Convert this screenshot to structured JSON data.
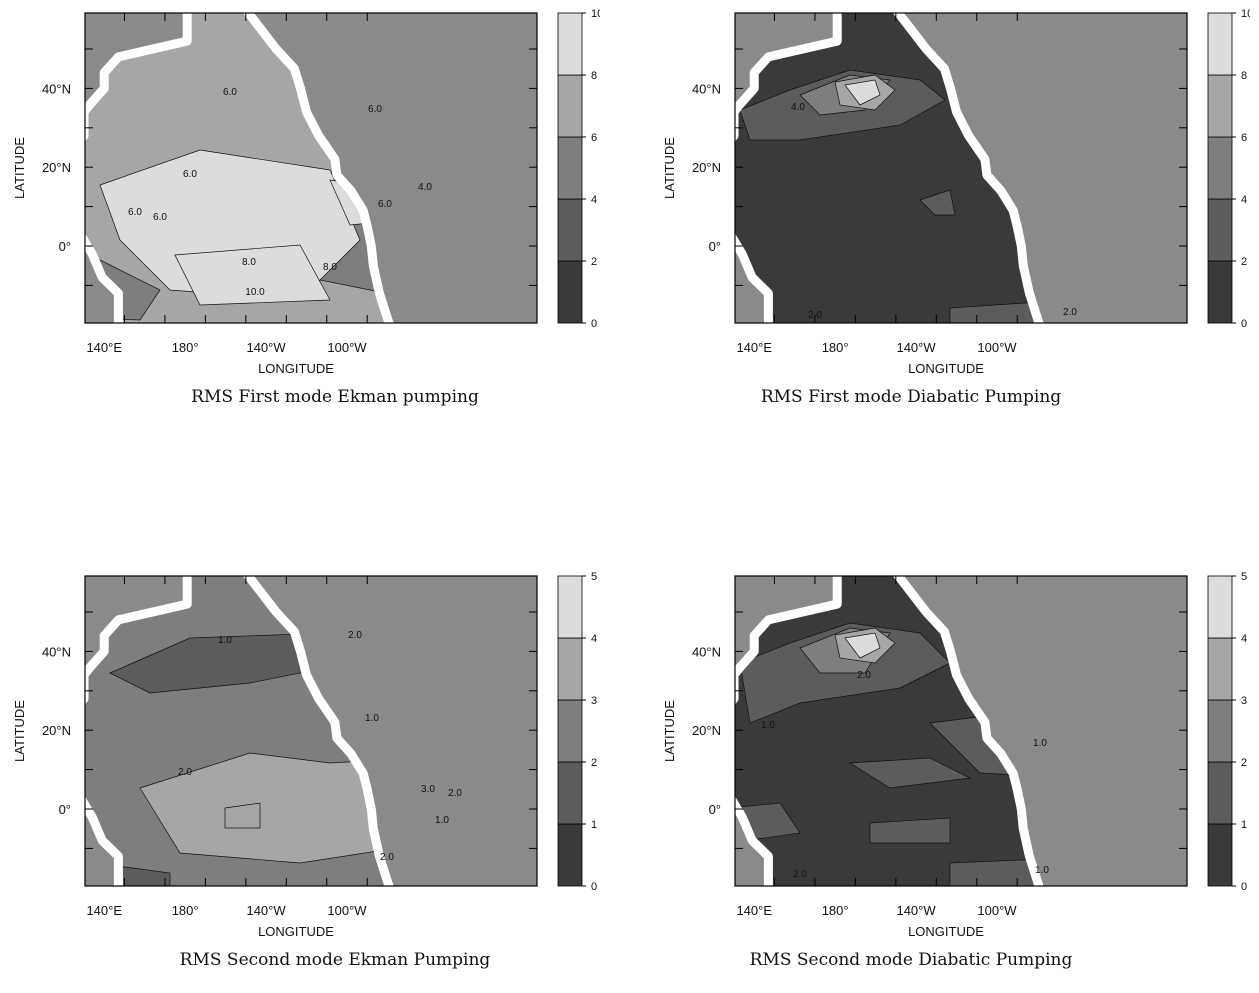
{
  "colors": {
    "land": "#8a8a8a",
    "coast": "#ffffff",
    "frame": "#000000",
    "levels": [
      "#3a3a3a",
      "#5c5c5c",
      "#7e7e7e",
      "#a6a6a6",
      "#dcdcdc"
    ]
  },
  "panels": [
    {
      "caption": "RMS First mode Ekman pumping",
      "xlabel": "LONGITUDE",
      "ylabel": "LATITUDE",
      "xticks": [
        "140°E",
        "180°",
        "140°W",
        "100°W"
      ],
      "yticks": [
        "40°N",
        "20°N",
        "0°"
      ],
      "colorbar": [
        "0",
        "2",
        "4",
        "6",
        "8",
        "10"
      ],
      "contour_labels": [
        "6.0",
        "6.0",
        "6.0",
        "6.0",
        "4.0",
        "6.0",
        "6.0",
        "8.0",
        "8.0",
        "10.0"
      ],
      "field": "ekman1"
    },
    {
      "caption": "RMS First mode Diabatic Pumping",
      "xlabel": "LONGITUDE",
      "ylabel": "LATITUDE",
      "xticks": [
        "140°E",
        "180°",
        "140°W",
        "100°W"
      ],
      "yticks": [
        "40°N",
        "20°N",
        "0°"
      ],
      "colorbar": [
        "0",
        "2",
        "4",
        "6",
        "8",
        "10"
      ],
      "contour_labels": [
        "4.0",
        "2.0",
        "2.0"
      ],
      "field": "diab1"
    },
    {
      "caption": "RMS Second mode Ekman Pumping",
      "xlabel": "LONGITUDE",
      "ylabel": "LATITUDE",
      "xticks": [
        "140°E",
        "180°",
        "140°W",
        "100°W"
      ],
      "yticks": [
        "40°N",
        "20°N",
        "0°"
      ],
      "colorbar": [
        "0",
        "1",
        "2",
        "3",
        "4",
        "5"
      ],
      "contour_labels": [
        "1.0",
        "2.0",
        "1.0",
        "2.0",
        "3.0",
        "2.0",
        "1.0",
        "2.0"
      ],
      "field": "ekman2"
    },
    {
      "caption": "RMS Second mode Diabatic Pumping",
      "xlabel": "LONGITUDE",
      "ylabel": "LATITUDE",
      "xticks": [
        "140°E",
        "180°",
        "140°W",
        "100°W"
      ],
      "yticks": [
        "40°N",
        "20°N",
        "0°"
      ],
      "colorbar": [
        "0",
        "1",
        "2",
        "3",
        "4",
        "5"
      ],
      "contour_labels": [
        "2.0",
        "1.0",
        "1.0",
        "2.0",
        "1.0"
      ],
      "field": "diab2"
    }
  ]
}
